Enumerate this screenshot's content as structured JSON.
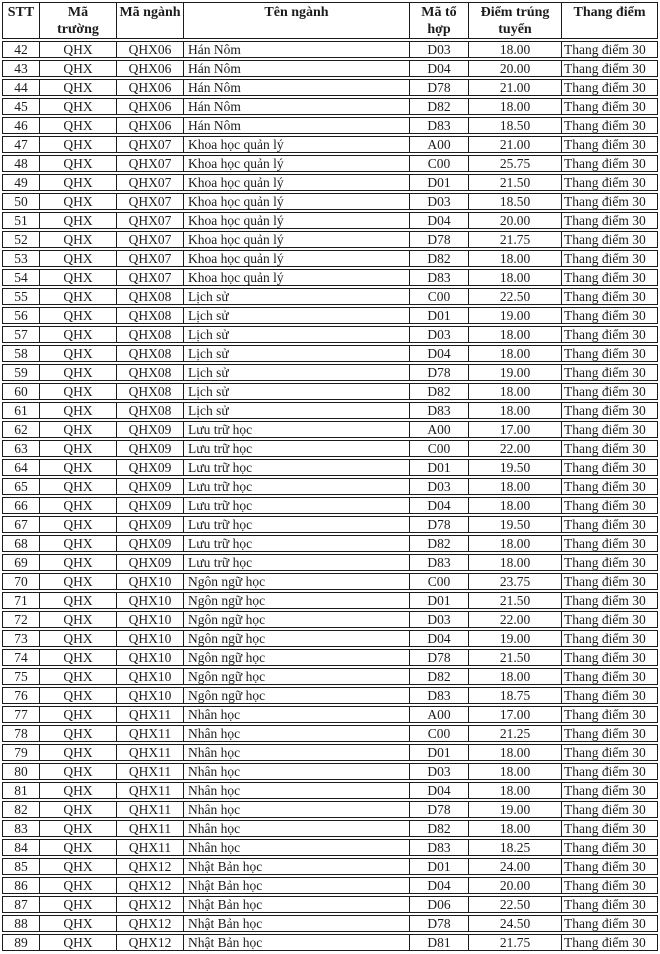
{
  "colors": {
    "background": "#ffffff",
    "text": "#1c1c1c",
    "border": "#1b1b1b"
  },
  "table": {
    "columns": [
      {
        "key": "stt",
        "label": "STT"
      },
      {
        "key": "ma-truong",
        "label": "Mã\ntrường"
      },
      {
        "key": "ma-nganh",
        "label": "Mã ngành"
      },
      {
        "key": "ten-nganh",
        "label": "Tên ngành"
      },
      {
        "key": "ma-to-hop",
        "label": "Mã tổ\nhợp"
      },
      {
        "key": "diem-trung-tuyen",
        "label": "Điểm trúng\ntuyển"
      },
      {
        "key": "thang-diem",
        "label": "Thang điểm"
      }
    ],
    "rows": [
      [
        "42",
        "QHX",
        "QHX06",
        "Hán Nôm",
        "D03",
        "18.00",
        "Thang điểm 30"
      ],
      [
        "43",
        "QHX",
        "QHX06",
        "Hán Nôm",
        "D04",
        "20.00",
        "Thang điểm 30"
      ],
      [
        "44",
        "QHX",
        "QHX06",
        "Hán Nôm",
        "D78",
        "21.00",
        "Thang điểm 30"
      ],
      [
        "45",
        "QHX",
        "QHX06",
        "Hán Nôm",
        "D82",
        "18.00",
        "Thang điểm 30"
      ],
      [
        "46",
        "QHX",
        "QHX06",
        "Hán Nôm",
        "D83",
        "18.50",
        "Thang điểm 30"
      ],
      [
        "47",
        "QHX",
        "QHX07",
        "Khoa học quản lý",
        "A00",
        "21.00",
        "Thang điểm 30"
      ],
      [
        "48",
        "QHX",
        "QHX07",
        "Khoa học quản lý",
        "C00",
        "25.75",
        "Thang điểm 30"
      ],
      [
        "49",
        "QHX",
        "QHX07",
        "Khoa học quản lý",
        "D01",
        "21.50",
        "Thang điểm 30"
      ],
      [
        "50",
        "QHX",
        "QHX07",
        "Khoa học quản lý",
        "D03",
        "18.50",
        "Thang điểm 30"
      ],
      [
        "51",
        "QHX",
        "QHX07",
        "Khoa học quản lý",
        "D04",
        "20.00",
        "Thang điểm 30"
      ],
      [
        "52",
        "QHX",
        "QHX07",
        "Khoa học quản lý",
        "D78",
        "21.75",
        "Thang điểm 30"
      ],
      [
        "53",
        "QHX",
        "QHX07",
        "Khoa học quản lý",
        "D82",
        "18.00",
        "Thang điểm 30"
      ],
      [
        "54",
        "QHX",
        "QHX07",
        "Khoa học quản lý",
        "D83",
        "18.00",
        "Thang điểm 30"
      ],
      [
        "55",
        "QHX",
        "QHX08",
        "Lịch sử",
        "C00",
        "22.50",
        "Thang điểm 30"
      ],
      [
        "56",
        "QHX",
        "QHX08",
        "Lịch sử",
        "D01",
        "19.00",
        "Thang điểm 30"
      ],
      [
        "57",
        "QHX",
        "QHX08",
        "Lịch sử",
        "D03",
        "18.00",
        "Thang điểm 30"
      ],
      [
        "58",
        "QHX",
        "QHX08",
        "Lịch sử",
        "D04",
        "18.00",
        "Thang điểm 30"
      ],
      [
        "59",
        "QHX",
        "QHX08",
        "Lịch sử",
        "D78",
        "19.00",
        "Thang điểm 30"
      ],
      [
        "60",
        "QHX",
        "QHX08",
        "Lịch sử",
        "D82",
        "18.00",
        "Thang điểm 30"
      ],
      [
        "61",
        "QHX",
        "QHX08",
        "Lịch sử",
        "D83",
        "18.00",
        "Thang điểm 30"
      ],
      [
        "62",
        "QHX",
        "QHX09",
        "Lưu trữ học",
        "A00",
        "17.00",
        "Thang điểm 30"
      ],
      [
        "63",
        "QHX",
        "QHX09",
        "Lưu trữ học",
        "C00",
        "22.00",
        "Thang điểm 30"
      ],
      [
        "64",
        "QHX",
        "QHX09",
        "Lưu trữ học",
        "D01",
        "19.50",
        "Thang điểm 30"
      ],
      [
        "65",
        "QHX",
        "QHX09",
        "Lưu trữ học",
        "D03",
        "18.00",
        "Thang điểm 30"
      ],
      [
        "66",
        "QHX",
        "QHX09",
        "Lưu trữ học",
        "D04",
        "18.00",
        "Thang điểm 30"
      ],
      [
        "67",
        "QHX",
        "QHX09",
        "Lưu trữ học",
        "D78",
        "19.50",
        "Thang điểm 30"
      ],
      [
        "68",
        "QHX",
        "QHX09",
        "Lưu trữ học",
        "D82",
        "18.00",
        "Thang điểm 30"
      ],
      [
        "69",
        "QHX",
        "QHX09",
        "Lưu trữ học",
        "D83",
        "18.00",
        "Thang điểm 30"
      ],
      [
        "70",
        "QHX",
        "QHX10",
        "Ngôn ngữ học",
        "C00",
        "23.75",
        "Thang điểm 30"
      ],
      [
        "71",
        "QHX",
        "QHX10",
        "Ngôn ngữ học",
        "D01",
        "21.50",
        "Thang điểm 30"
      ],
      [
        "72",
        "QHX",
        "QHX10",
        "Ngôn ngữ học",
        "D03",
        "22.00",
        "Thang điểm 30"
      ],
      [
        "73",
        "QHX",
        "QHX10",
        "Ngôn ngữ học",
        "D04",
        "19.00",
        "Thang điểm 30"
      ],
      [
        "74",
        "QHX",
        "QHX10",
        "Ngôn ngữ học",
        "D78",
        "21.50",
        "Thang điểm 30"
      ],
      [
        "75",
        "QHX",
        "QHX10",
        "Ngôn ngữ học",
        "D82",
        "18.00",
        "Thang điểm 30"
      ],
      [
        "76",
        "QHX",
        "QHX10",
        "Ngôn ngữ học",
        "D83",
        "18.75",
        "Thang điểm 30"
      ],
      [
        "77",
        "QHX",
        "QHX11",
        "Nhân học",
        "A00",
        "17.00",
        "Thang điểm 30"
      ],
      [
        "78",
        "QHX",
        "QHX11",
        "Nhân học",
        "C00",
        "21.25",
        "Thang điểm 30"
      ],
      [
        "79",
        "QHX",
        "QHX11",
        "Nhân học",
        "D01",
        "18.00",
        "Thang điểm 30"
      ],
      [
        "80",
        "QHX",
        "QHX11",
        "Nhân học",
        "D03",
        "18.00",
        "Thang điểm 30"
      ],
      [
        "81",
        "QHX",
        "QHX11",
        "Nhân học",
        "D04",
        "18.00",
        "Thang điểm 30"
      ],
      [
        "82",
        "QHX",
        "QHX11",
        "Nhân học",
        "D78",
        "19.00",
        "Thang điểm 30"
      ],
      [
        "83",
        "QHX",
        "QHX11",
        "Nhân học",
        "D82",
        "18.00",
        "Thang điểm 30"
      ],
      [
        "84",
        "QHX",
        "QHX11",
        "Nhân học",
        "D83",
        "18.25",
        "Thang điểm 30"
      ],
      [
        "85",
        "QHX",
        "QHX12",
        "Nhật Bản học",
        "D01",
        "24.00",
        "Thang điểm 30"
      ],
      [
        "86",
        "QHX",
        "QHX12",
        "Nhật Bản học",
        "D04",
        "20.00",
        "Thang điểm 30"
      ],
      [
        "87",
        "QHX",
        "QHX12",
        "Nhật Bản học",
        "D06",
        "22.50",
        "Thang điểm 30"
      ],
      [
        "88",
        "QHX",
        "QHX12",
        "Nhật Bản học",
        "D78",
        "24.50",
        "Thang điểm 30"
      ],
      [
        "89",
        "QHX",
        "QHX12",
        "Nhật Bản học",
        "D81",
        "21.75",
        "Thang điểm 30"
      ]
    ]
  }
}
